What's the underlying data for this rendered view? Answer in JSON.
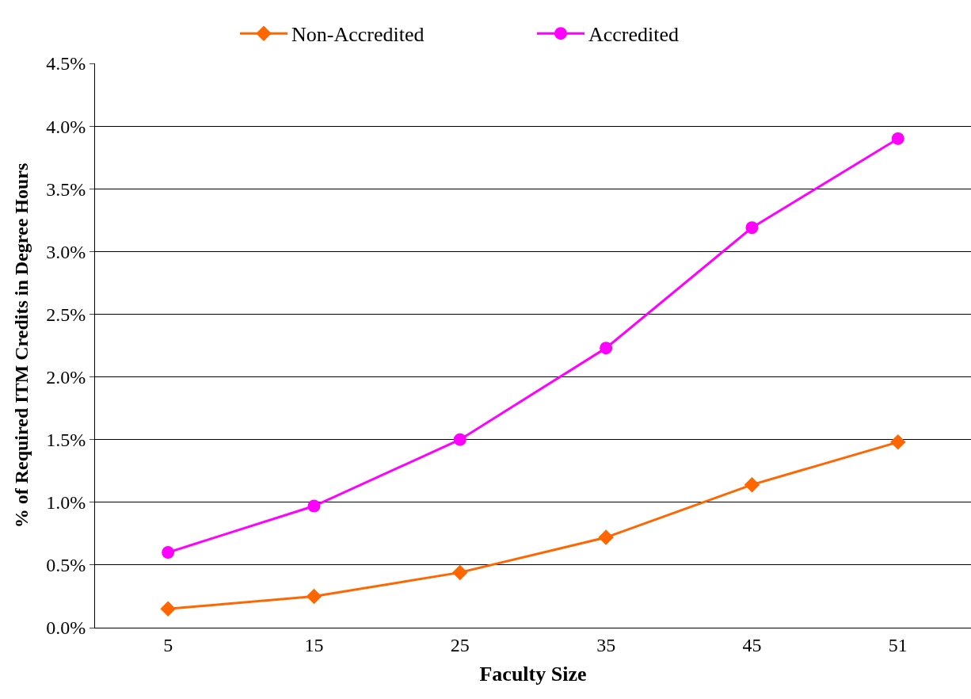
{
  "chart_data": {
    "type": "line",
    "xlabel": "Faculty Size",
    "ylabel": "% of Required ITM Credits in Degree Hours",
    "categories": [
      "5",
      "15",
      "25",
      "35",
      "45",
      "51"
    ],
    "series": [
      {
        "name": "Non-Accredited",
        "color": "#ff6600",
        "marker": "diamond",
        "values": [
          0.15,
          0.25,
          0.44,
          0.72,
          1.14,
          1.48
        ]
      },
      {
        "name": "Accredited",
        "color": "#ff00ff",
        "marker": "circle",
        "values": [
          0.6,
          0.97,
          1.5,
          2.23,
          3.19,
          3.9
        ]
      }
    ],
    "ylim": [
      0,
      4.5
    ],
    "yticks": [
      {
        "value": 0,
        "label": "0.0%"
      },
      {
        "value": 0.5,
        "label": "0.5%"
      },
      {
        "value": 1,
        "label": "1.0%"
      },
      {
        "value": 1.5,
        "label": "1.5%"
      },
      {
        "value": 2,
        "label": "2.0%"
      },
      {
        "value": 2.5,
        "label": "2.5%"
      },
      {
        "value": 3,
        "label": "3.0%"
      },
      {
        "value": 3.5,
        "label": "3.5%"
      },
      {
        "value": 4,
        "label": "4.0%"
      },
      {
        "value": 4.5,
        "label": "4.5%"
      }
    ],
    "grid": "y",
    "legend": "top",
    "line_style": "solid"
  }
}
